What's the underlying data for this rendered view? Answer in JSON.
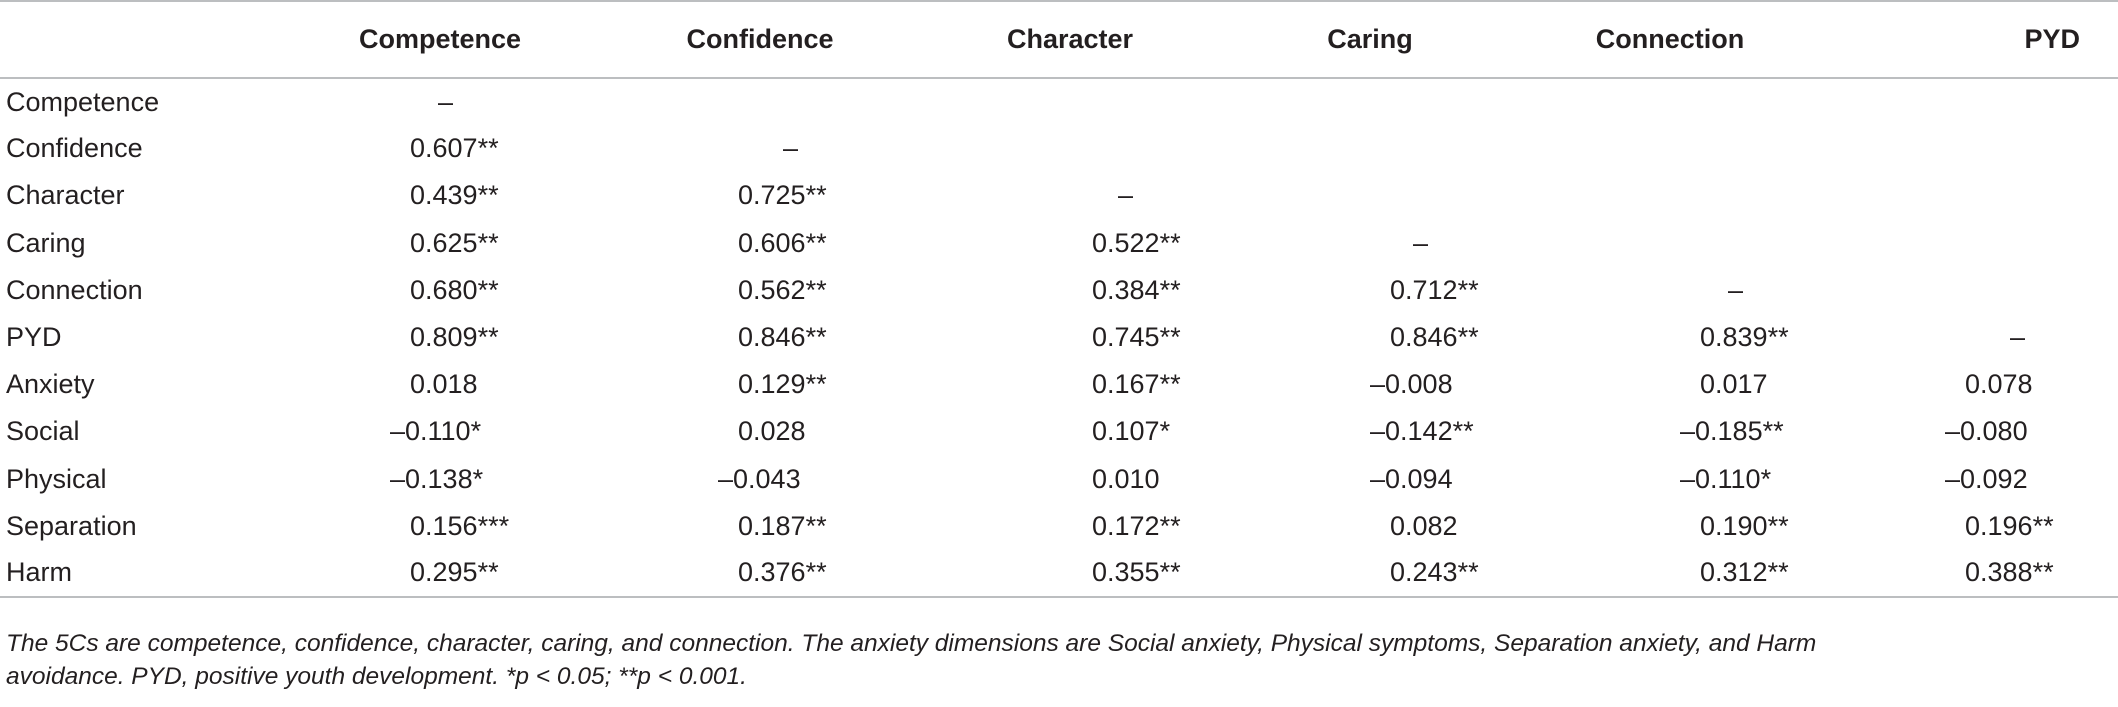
{
  "table": {
    "columns": [
      "",
      "Competence",
      "Confidence",
      "Character",
      "Caring",
      "Connection",
      "PYD"
    ],
    "rows": [
      {
        "label": "Competence",
        "values": [
          "–",
          "",
          "",
          "",
          "",
          ""
        ]
      },
      {
        "label": "Confidence",
        "values": [
          "0.607**",
          "–",
          "",
          "",
          "",
          ""
        ]
      },
      {
        "label": "Character",
        "values": [
          "0.439**",
          "0.725**",
          "–",
          "",
          "",
          ""
        ]
      },
      {
        "label": "Caring",
        "values": [
          "0.625**",
          "0.606**",
          "0.522**",
          "–",
          "",
          ""
        ]
      },
      {
        "label": "Connection",
        "values": [
          "0.680**",
          "0.562**",
          "0.384**",
          "0.712**",
          "–",
          ""
        ]
      },
      {
        "label": "PYD",
        "values": [
          "0.809**",
          "0.846**",
          "0.745**",
          "0.846**",
          "0.839**",
          "–"
        ]
      },
      {
        "label": "Anxiety",
        "values": [
          "0.018",
          "0.129**",
          "0.167**",
          "–0.008",
          "0.017",
          "0.078"
        ]
      },
      {
        "label": "Social",
        "values": [
          "–0.110*",
          "0.028",
          "0.107*",
          "–0.142**",
          "–0.185**",
          "–0.080"
        ]
      },
      {
        "label": "Physical",
        "values": [
          "–0.138*",
          "–0.043",
          "0.010",
          "–0.094",
          "–0.110*",
          "–0.092"
        ]
      },
      {
        "label": "Separation",
        "values": [
          "0.156***",
          "0.187**",
          "0.172**",
          "0.082",
          "0.190**",
          "0.196**"
        ]
      },
      {
        "label": "Harm",
        "values": [
          "0.295**",
          "0.376**",
          "0.355**",
          "0.243**",
          "0.312**",
          "0.388**"
        ]
      }
    ]
  },
  "footnote": {
    "line1": "The 5Cs are competence, confidence, character, caring, and connection. The anxiety dimensions are Social anxiety, Physical symptoms, Separation anxiety, and Harm",
    "line2": "avoidance. PYD, positive youth development. *p < 0.05; **p < 0.001."
  }
}
